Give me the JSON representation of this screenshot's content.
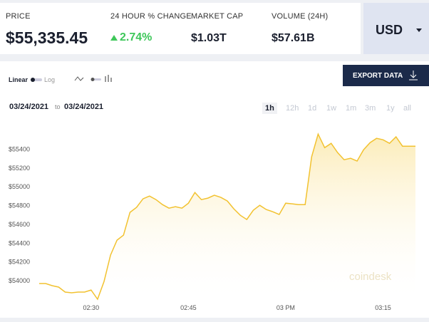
{
  "stats": [
    {
      "label": "PRICE",
      "value": "$55,335.45"
    },
    {
      "label": "24 HOUR % CHANGE",
      "value": "2.74%"
    },
    {
      "label": "MARKET CAP",
      "value": "$1.03T"
    },
    {
      "label": "VOLUME (24H)",
      "value": "$57.61B"
    }
  ],
  "currency": "USD",
  "toolbar": {
    "linear": "Linear",
    "log": "Log",
    "export": "EXPORT DATA"
  },
  "date_range": {
    "from": "03/24/2021",
    "to_word": "to",
    "to": "03/24/2021"
  },
  "ranges": [
    "1h",
    "12h",
    "1d",
    "1w",
    "1m",
    "3m",
    "1y",
    "all"
  ],
  "watermark": "coindesk",
  "chart_data": {
    "type": "line",
    "color": "#f2c230",
    "x": [
      "02:22",
      "02:23",
      "02:24",
      "02:25",
      "02:26",
      "02:27",
      "02:28",
      "02:29",
      "02:30",
      "02:31",
      "02:32",
      "02:33",
      "02:34",
      "02:35",
      "02:36",
      "02:37",
      "02:38",
      "02:39",
      "02:40",
      "02:41",
      "02:42",
      "02:43",
      "02:44",
      "02:45",
      "02:46",
      "02:47",
      "02:48",
      "02:49",
      "02:50",
      "02:51",
      "02:52",
      "02:53",
      "02:54",
      "02:55",
      "02:56",
      "02:57",
      "02:58",
      "02:59",
      "03:00",
      "03:01",
      "03:02",
      "03:03",
      "03:04",
      "03:05",
      "03:06",
      "03:07",
      "03:08",
      "03:09",
      "03:10",
      "03:11",
      "03:12",
      "03:13",
      "03:14",
      "03:15",
      "03:16",
      "03:17",
      "03:18",
      "03:19",
      "03:20"
    ],
    "values": [
      53970,
      53970,
      53947,
      53932,
      53879,
      53871,
      53879,
      53879,
      53901,
      53803,
      53992,
      54273,
      54432,
      54485,
      54728,
      54781,
      54872,
      54902,
      54864,
      54811,
      54773,
      54788,
      54773,
      54826,
      54940,
      54864,
      54880,
      54910,
      54887,
      54849,
      54766,
      54697,
      54652,
      54750,
      54803,
      54758,
      54735,
      54705,
      54826,
      54819,
      54811,
      54811,
      55319,
      55562,
      55417,
      55463,
      55364,
      55289,
      55304,
      55274,
      55395,
      55471,
      55516,
      55501,
      55463,
      55532,
      55433,
      55433,
      55433
    ],
    "xlim": [
      "02:22",
      "03:20"
    ],
    "xticks": [
      {
        "value": "02:30",
        "label": "02:30"
      },
      {
        "value": "02:45",
        "label": "02:45"
      },
      {
        "value": "03:00",
        "label": "03 PM"
      },
      {
        "value": "03:15",
        "label": "03:15"
      }
    ],
    "ylim": [
      53765,
      55700
    ],
    "yticks": [
      {
        "value": 54000,
        "label": "$54000"
      },
      {
        "value": 54200,
        "label": "$54200"
      },
      {
        "value": 54400,
        "label": "$54400"
      },
      {
        "value": 54600,
        "label": "$54600"
      },
      {
        "value": 54800,
        "label": "$54800"
      },
      {
        "value": 55000,
        "label": "$55000"
      },
      {
        "value": 55200,
        "label": "$55200"
      },
      {
        "value": 55400,
        "label": "$55400"
      }
    ]
  }
}
